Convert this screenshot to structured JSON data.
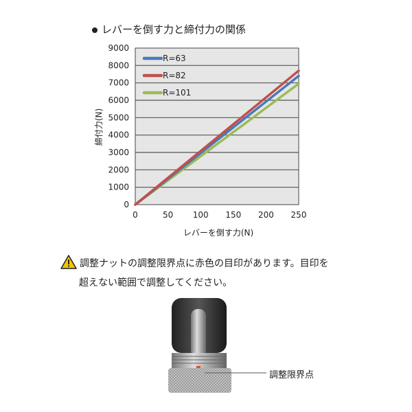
{
  "title": "レバーを倒す力と締付力の関係",
  "chart_data": {
    "type": "line",
    "xlabel": "レバーを倒す力(N)",
    "ylabel": "締付力(N)",
    "xlim": [
      0,
      250
    ],
    "ylim": [
      0,
      9000
    ],
    "xticks": [
      "0",
      "50",
      "100",
      "150",
      "200",
      "250"
    ],
    "yticks": [
      "0",
      "1000",
      "2000",
      "3000",
      "4000",
      "5000",
      "6000",
      "7000",
      "8000",
      "9000"
    ],
    "grid": true,
    "legend_position": "top-left",
    "series": [
      {
        "name": "R=63",
        "color": "#4a7ab8",
        "x": [
          0,
          250
        ],
        "y": [
          0,
          7400
        ]
      },
      {
        "name": "R=82",
        "color": "#c0504d",
        "x": [
          0,
          250
        ],
        "y": [
          0,
          7700
        ]
      },
      {
        "name": "R=101",
        "color": "#9bbb59",
        "x": [
          0,
          250
        ],
        "y": [
          0,
          6950
        ]
      }
    ]
  },
  "warning": {
    "icon": "warning-triangle-icon",
    "line1": "調整ナットの調整限界点に赤色の目印があります。目印を",
    "line2": "超えない範囲で調整してください。"
  },
  "photo": {
    "label": "調整限界点"
  }
}
